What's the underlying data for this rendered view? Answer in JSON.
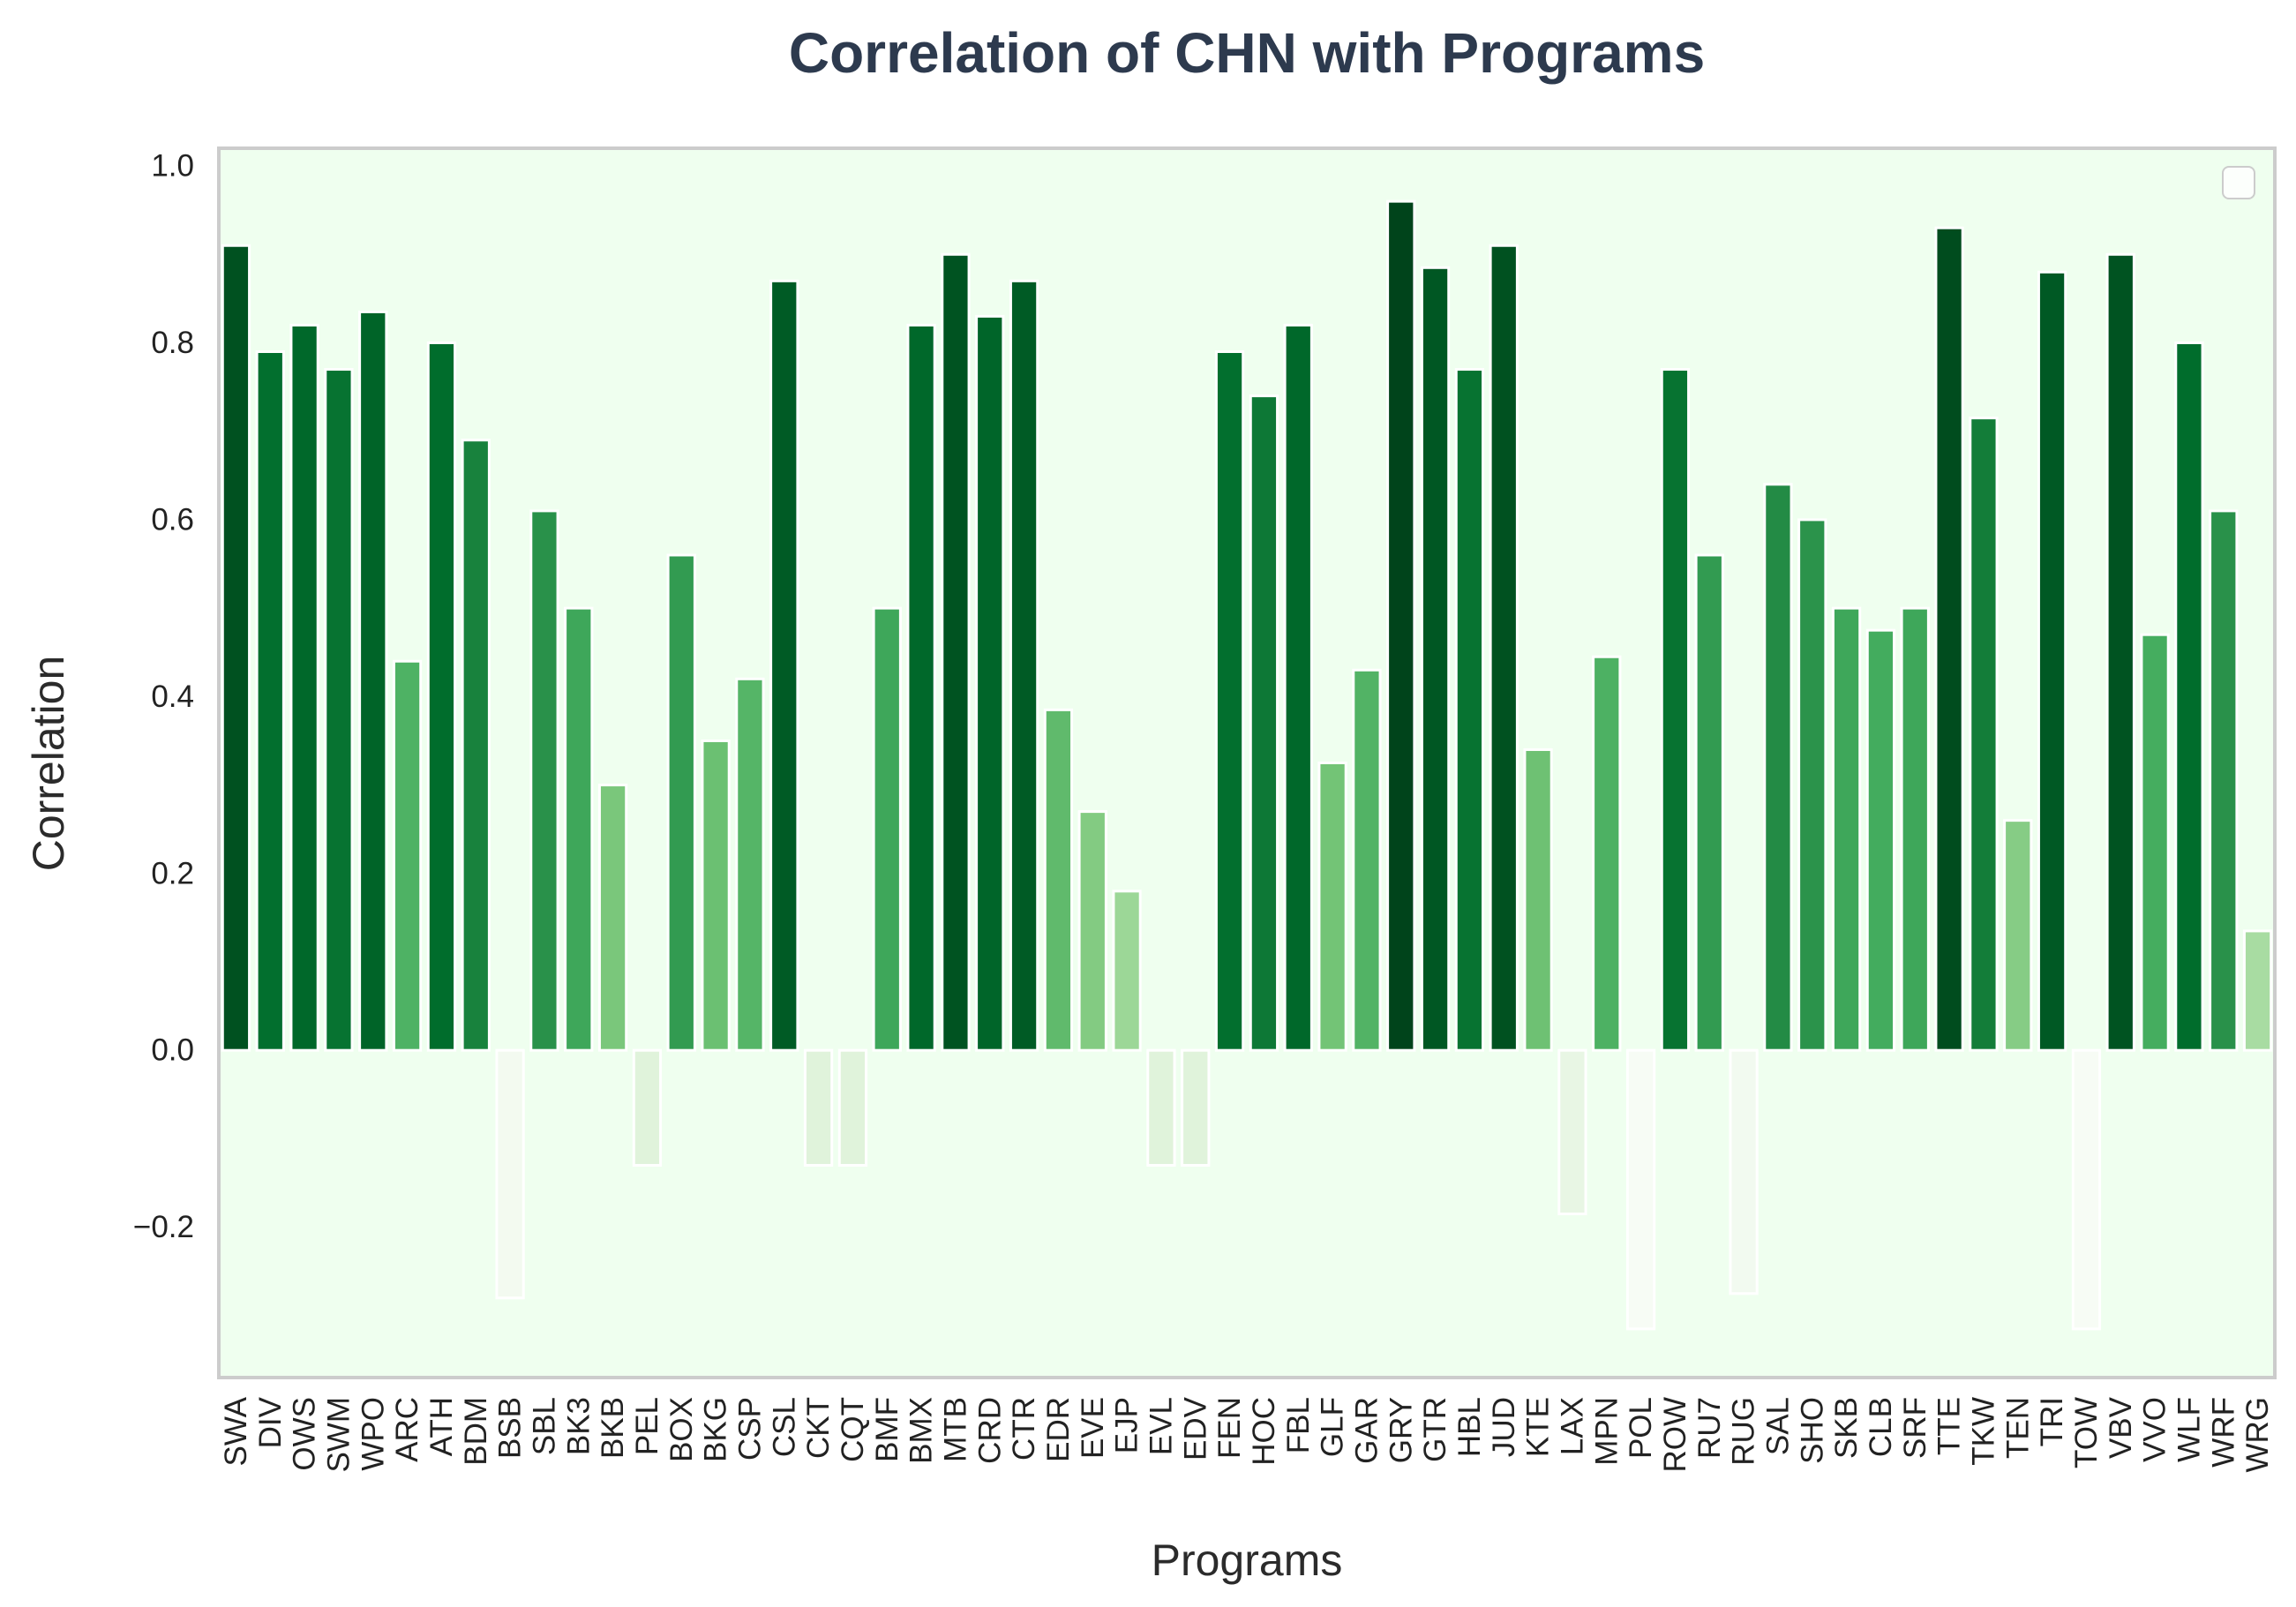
{
  "chart_data": {
    "type": "bar",
    "title": "Correlation of CHN with Programs",
    "xlabel": "Programs",
    "ylabel": "Correlation",
    "ylim": [
      -0.37,
      1.02
    ],
    "yticks": [
      -0.2,
      0.0,
      0.2,
      0.4,
      0.6,
      0.8,
      1.0
    ],
    "ytick_labels": [
      "−0.2",
      "0.0",
      "0.2",
      "0.4",
      "0.6",
      "0.8",
      "1.0"
    ],
    "grid": false,
    "legend": "top-right (empty)",
    "colormap": "Greens",
    "colors": {
      "plot_background": "#efffef",
      "axes_border": "#cccccc",
      "title": "#2d3a4e"
    },
    "categories": [
      "SWA",
      "DIV",
      "OWS",
      "SWM",
      "WPO",
      "ARC",
      "ATH",
      "BDM",
      "BSB",
      "SBL",
      "BK3",
      "BKB",
      "PEL",
      "BOX",
      "BKG",
      "CSP",
      "CSL",
      "CKT",
      "CQT",
      "BMF",
      "BMX",
      "MTB",
      "CRD",
      "CTR",
      "EDR",
      "EVE",
      "EJP",
      "EVL",
      "EDV",
      "FEN",
      "HOC",
      "FBL",
      "GLF",
      "GAR",
      "GRY",
      "GTR",
      "HBL",
      "JUD",
      "KTE",
      "LAX",
      "MPN",
      "POL",
      "ROW",
      "RU7",
      "RUG",
      "SAL",
      "SHO",
      "SKB",
      "CLB",
      "SRF",
      "TTE",
      "TKW",
      "TEN",
      "TRI",
      "TOW",
      "VBV",
      "VVO",
      "WLF",
      "WRF",
      "WRG"
    ],
    "values": [
      0.91,
      0.79,
      0.82,
      0.77,
      0.835,
      0.44,
      0.8,
      0.69,
      -0.28,
      0.61,
      0.5,
      0.3,
      -0.13,
      0.56,
      0.35,
      0.42,
      0.87,
      -0.13,
      -0.13,
      0.5,
      0.82,
      0.9,
      0.83,
      0.87,
      0.385,
      0.27,
      0.18,
      -0.13,
      -0.13,
      0.79,
      0.74,
      0.82,
      0.325,
      0.43,
      0.96,
      0.885,
      0.77,
      0.91,
      0.34,
      -0.185,
      0.445,
      -0.315,
      0.77,
      0.56,
      -0.275,
      0.64,
      0.6,
      0.5,
      0.475,
      0.5,
      0.93,
      0.715,
      0.26,
      0.88,
      -0.315,
      0.9,
      0.47,
      0.8,
      0.61,
      0.135
    ]
  }
}
